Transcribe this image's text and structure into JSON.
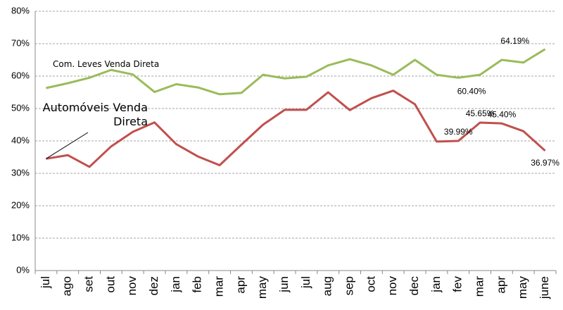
{
  "chart_data": {
    "type": "line",
    "categories": [
      "jul",
      "ago",
      "set",
      "out",
      "nov",
      "dez",
      "jan",
      "feb",
      "mar",
      "apr",
      "may",
      "jun",
      "jul",
      "aug",
      "sep",
      "oct",
      "nov",
      "dec",
      "jan",
      "fev",
      "mar",
      "apr",
      "may",
      "june"
    ],
    "series": [
      {
        "name": "Com. Leves Venda Direta",
        "color": "#9bbb59",
        "values": [
          56.3,
          57.8,
          59.5,
          61.9,
          60.5,
          55.1,
          57.5,
          56.5,
          54.4,
          54.8,
          60.4,
          59.3,
          59.8,
          63.3,
          65.2,
          63.3,
          60.4,
          65.0,
          60.4,
          59.5,
          60.4,
          65.0,
          64.19,
          68.3
        ],
        "value_labels": [
          null,
          null,
          null,
          null,
          null,
          null,
          null,
          null,
          null,
          null,
          null,
          null,
          null,
          null,
          null,
          null,
          null,
          null,
          null,
          null,
          "60.40%",
          null,
          "64.19%",
          null
        ]
      },
      {
        "name": "Automóveis Venda Direta",
        "color": "#c0504d",
        "values": [
          34.5,
          35.6,
          32.0,
          38.3,
          42.8,
          45.7,
          39.0,
          35.2,
          32.5,
          38.8,
          45.0,
          49.6,
          49.6,
          55.0,
          49.5,
          53.2,
          55.5,
          51.3,
          39.8,
          39.99,
          45.65,
          45.4,
          43.0,
          36.97
        ],
        "value_labels": [
          null,
          null,
          null,
          null,
          null,
          null,
          null,
          null,
          null,
          null,
          null,
          null,
          null,
          null,
          null,
          null,
          null,
          null,
          null,
          "39.99%",
          "45.65%",
          "45.40%",
          null,
          "36.97%"
        ]
      }
    ],
    "ylim": [
      0,
      80
    ],
    "yticks": [
      {
        "value": 0,
        "label": "0%"
      },
      {
        "value": 10,
        "label": "10%"
      },
      {
        "value": 20,
        "label": "20%"
      },
      {
        "value": 30,
        "label": "30%"
      },
      {
        "value": 40,
        "label": "40%"
      },
      {
        "value": 50,
        "label": "50%"
      },
      {
        "value": 60,
        "label": "60%"
      },
      {
        "value": 70,
        "label": "70%"
      },
      {
        "value": 80,
        "label": "80%"
      }
    ],
    "grid": true
  }
}
